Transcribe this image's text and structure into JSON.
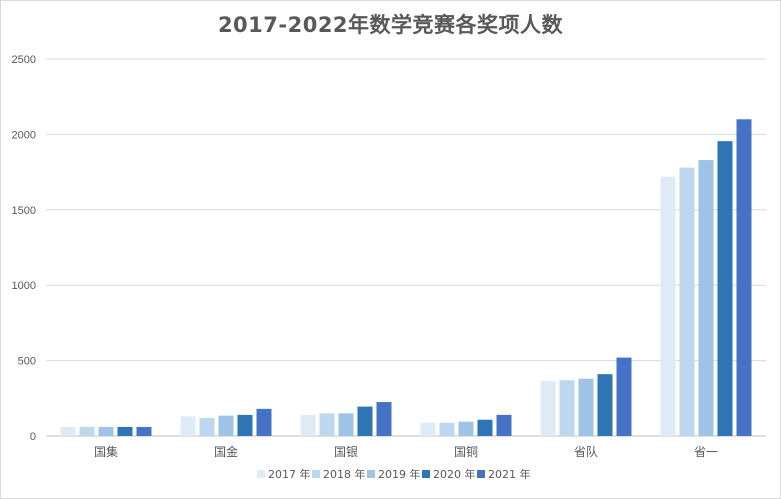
{
  "chart_data": {
    "type": "bar",
    "title": "2017-2022年数学竞赛各奖项人数",
    "xlabel": "",
    "ylabel": "",
    "ylim": [
      0,
      2500
    ],
    "yticks": [
      0,
      500,
      1000,
      1500,
      2000,
      2500
    ],
    "categories": [
      "国集",
      "国金",
      "国银",
      "国铜",
      "省队",
      "省一"
    ],
    "series": [
      {
        "name": "2017 年",
        "color": "#deebf7",
        "values": [
          60,
          130,
          140,
          88,
          365,
          1720
        ]
      },
      {
        "name": "2018 年",
        "color": "#bdd7ee",
        "values": [
          60,
          120,
          150,
          88,
          370,
          1780
        ]
      },
      {
        "name": "2019 年",
        "color": "#9dc3e6",
        "values": [
          60,
          135,
          150,
          95,
          380,
          1830
        ]
      },
      {
        "name": "2020 年",
        "color": "#2e75b6",
        "values": [
          60,
          140,
          195,
          108,
          410,
          1955
        ]
      },
      {
        "name": "2021 年",
        "color": "#4472c4",
        "values": [
          60,
          180,
          225,
          140,
          520,
          2100
        ]
      }
    ],
    "grid": true,
    "legend_position": "bottom"
  }
}
